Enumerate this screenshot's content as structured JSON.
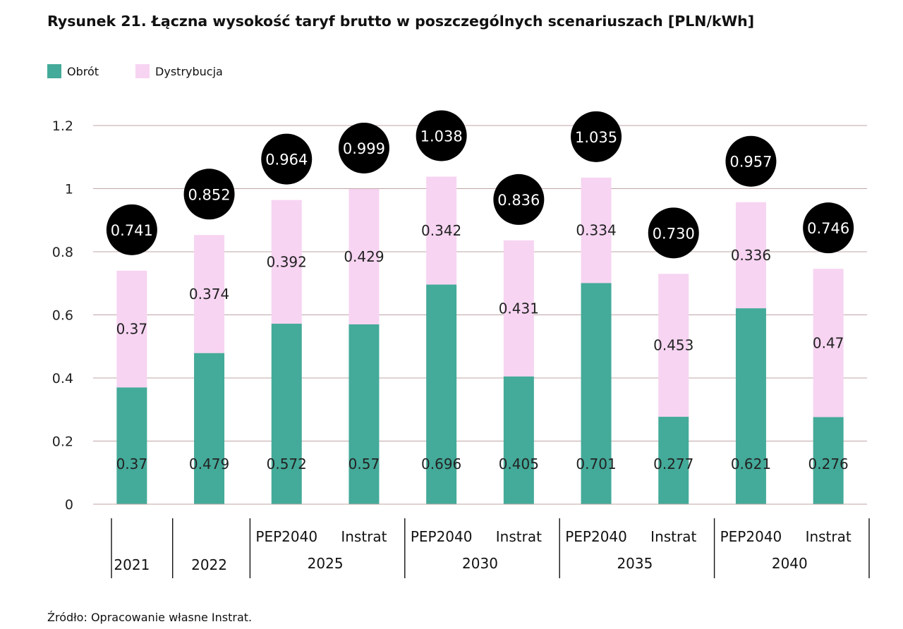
{
  "title": "Rysunek 21. Łączna wysokość taryf brutto w poszczególnych scenariuszach [PLN/kWh]",
  "source": "Źródło: Opracowanie własne Instrat.",
  "colors": {
    "obrot": "#44aa99",
    "dystrybucja": "#f7d4f2",
    "bubble": "#000000",
    "grid": "#bfa5a5"
  },
  "chart_data": {
    "type": "bar",
    "stacked": true,
    "legend_position": "top-left",
    "grid": true,
    "ylim": [
      0,
      1.2
    ],
    "yticks": [
      "0",
      "0.2",
      "0.4",
      "0.6",
      "0.8",
      "1",
      "1.2"
    ],
    "categories": [
      "2021",
      "2022",
      "2025 PEP2040",
      "2025 Instrat",
      "2030 PEP2040",
      "2030 Instrat",
      "2035 PEP2040",
      "2035 Instrat",
      "2040 PEP2040",
      "2040 Instrat"
    ],
    "series": [
      {
        "name": "Obrót",
        "values": [
          0.37,
          0.479,
          0.572,
          0.57,
          0.696,
          0.405,
          0.701,
          0.277,
          0.621,
          0.276
        ],
        "labels": [
          "0.37",
          "0.479",
          "0.572",
          "0.57",
          "0.696",
          "0.405",
          "0.701",
          "0.277",
          "0.621",
          "0.276"
        ]
      },
      {
        "name": "Dystrybucja",
        "values": [
          0.37,
          0.374,
          0.392,
          0.429,
          0.342,
          0.431,
          0.334,
          0.453,
          0.336,
          0.47
        ],
        "labels": [
          "0.37",
          "0.374",
          "0.392",
          "0.429",
          "0.342",
          "0.431",
          "0.334",
          "0.453",
          "0.336",
          "0.47"
        ]
      }
    ],
    "totals": [
      "0.741",
      "0.852",
      "0.964",
      "0.999",
      "1.038",
      "0.836",
      "1.035",
      "0.730",
      "0.957",
      "0.746"
    ],
    "x_groups": [
      {
        "year": "2021",
        "subs": [
          ""
        ]
      },
      {
        "year": "2022",
        "subs": [
          ""
        ]
      },
      {
        "year": "2025",
        "subs": [
          "PEP2040",
          "Instrat"
        ]
      },
      {
        "year": "2030",
        "subs": [
          "PEP2040",
          "Instrat"
        ]
      },
      {
        "year": "2035",
        "subs": [
          "PEP2040",
          "Instrat"
        ]
      },
      {
        "year": "2040",
        "subs": [
          "PEP2040",
          "Instrat"
        ]
      }
    ]
  }
}
